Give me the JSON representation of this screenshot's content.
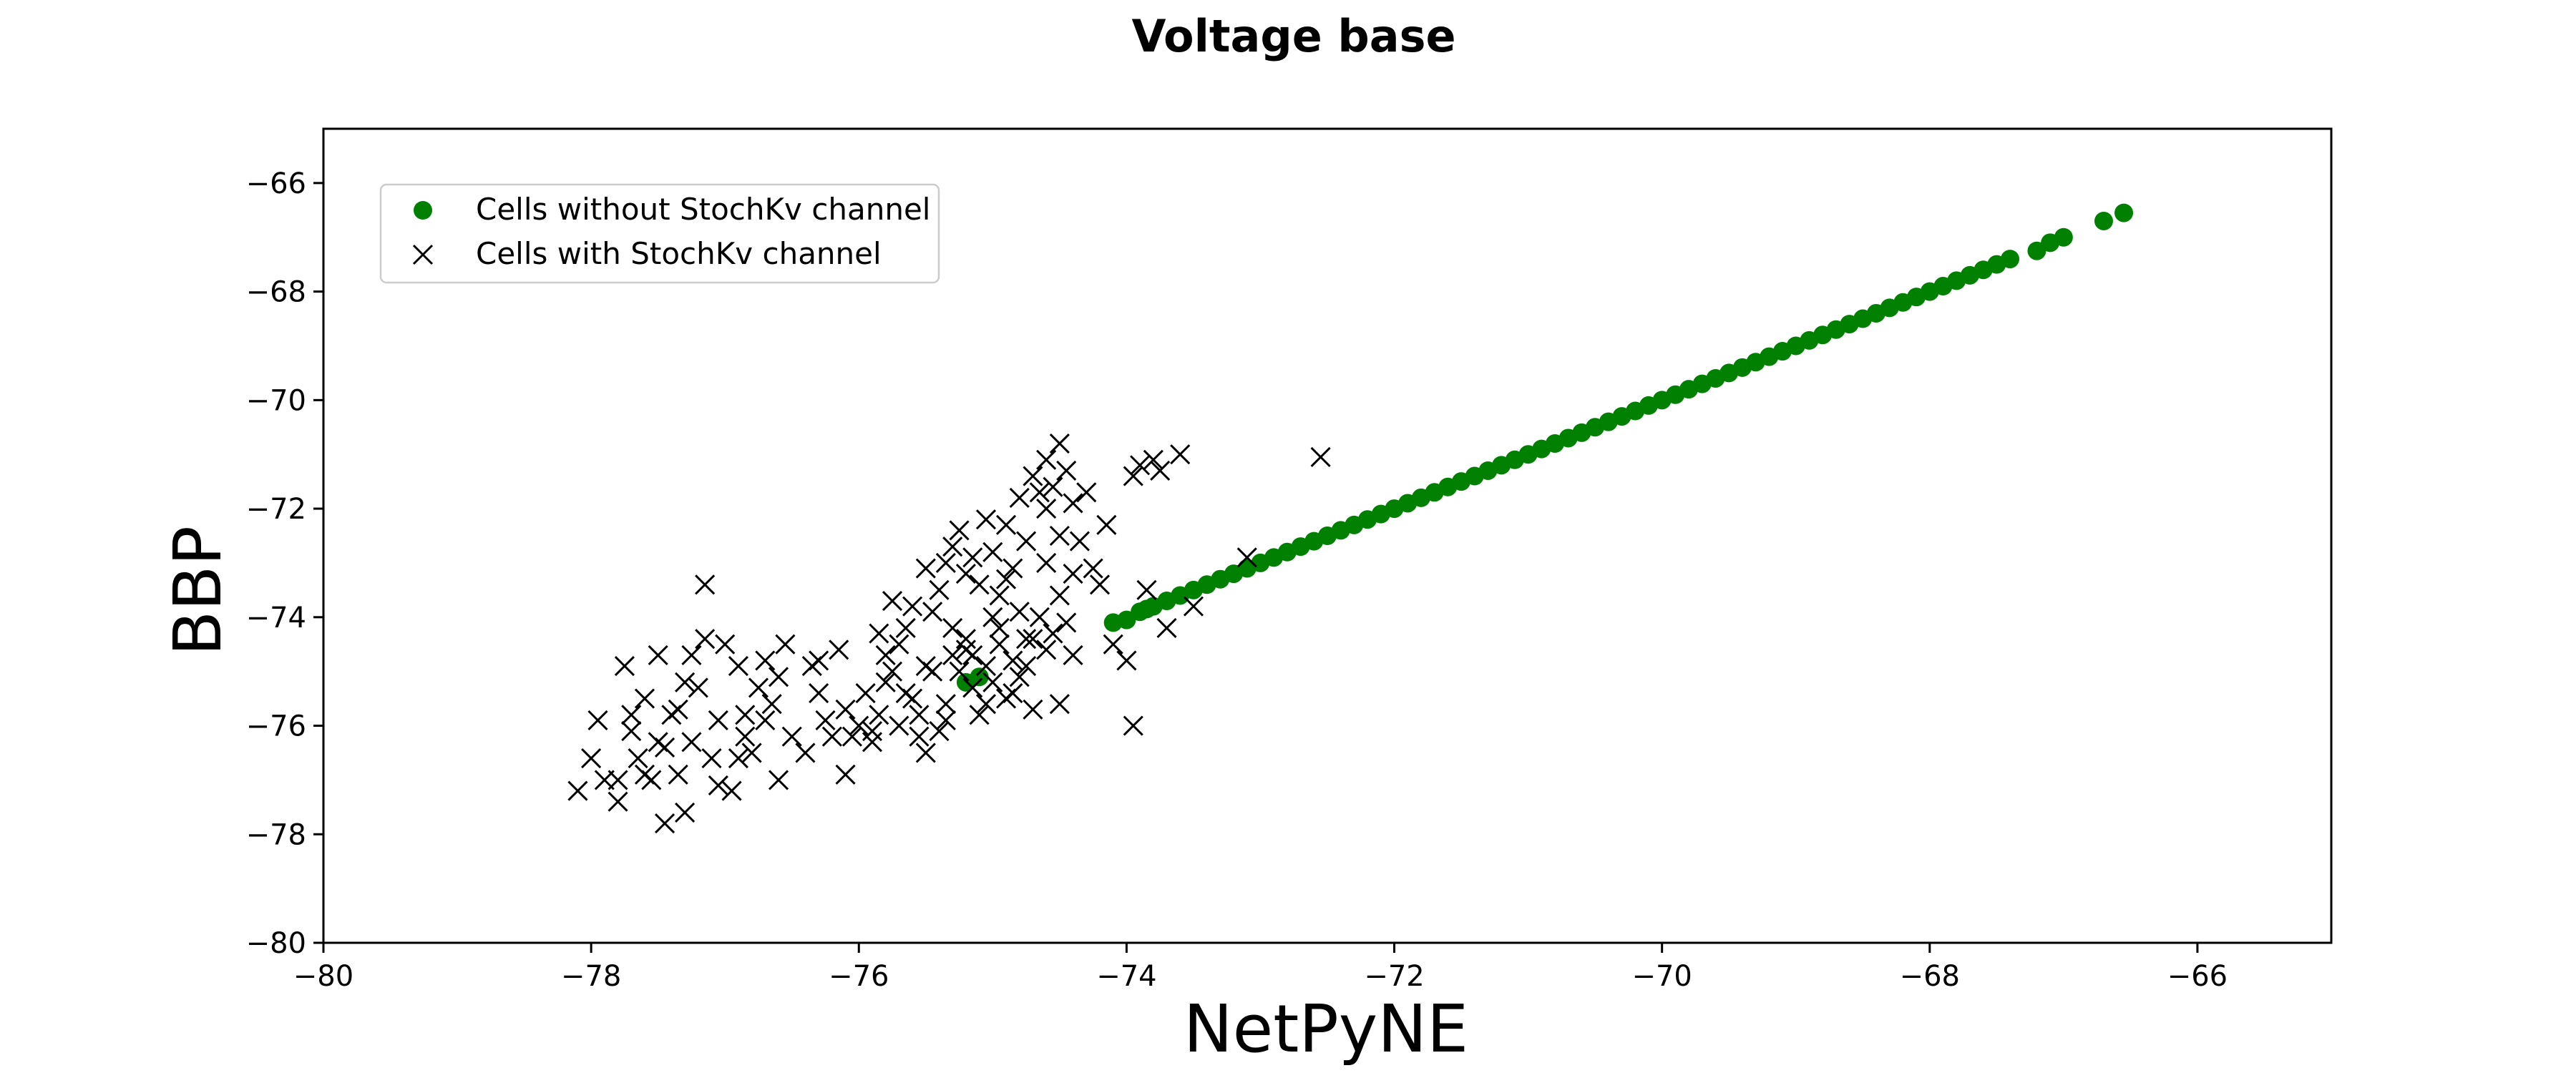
{
  "chart_data": {
    "type": "scatter",
    "title": "Voltage base",
    "xlabel": "NetPyNE",
    "ylabel": "BBP",
    "xlim": [
      -80,
      -65
    ],
    "ylim": [
      -80,
      -65
    ],
    "x_ticks": [
      -80,
      -78,
      -76,
      -74,
      -72,
      -70,
      -68,
      -66
    ],
    "y_ticks": [
      -80,
      -78,
      -76,
      -74,
      -72,
      -70,
      -68,
      -66
    ],
    "x_tick_labels": [
      "−80",
      "−78",
      "−76",
      "−74",
      "−72",
      "−70",
      "−68",
      "−66"
    ],
    "y_tick_labels": [
      "−80",
      "−78",
      "−76",
      "−74",
      "−72",
      "−70",
      "−68",
      "−66"
    ],
    "grid": false,
    "legend_position": "upper-left",
    "series": [
      {
        "name": "Cells without StochKv channel",
        "marker": "circle",
        "color": "#008000",
        "points": [
          [
            -74.1,
            -74.1
          ],
          [
            -74.0,
            -74.05
          ],
          [
            -73.9,
            -73.9
          ],
          [
            -73.85,
            -73.85
          ],
          [
            -73.8,
            -73.8
          ],
          [
            -73.7,
            -73.7
          ],
          [
            -73.6,
            -73.6
          ],
          [
            -73.5,
            -73.5
          ],
          [
            -73.4,
            -73.4
          ],
          [
            -73.3,
            -73.3
          ],
          [
            -73.2,
            -73.2
          ],
          [
            -73.1,
            -73.1
          ],
          [
            -73.0,
            -73.0
          ],
          [
            -72.9,
            -72.9
          ],
          [
            -72.8,
            -72.8
          ],
          [
            -72.7,
            -72.7
          ],
          [
            -72.6,
            -72.6
          ],
          [
            -72.5,
            -72.5
          ],
          [
            -72.4,
            -72.4
          ],
          [
            -72.3,
            -72.3
          ],
          [
            -72.2,
            -72.2
          ],
          [
            -72.1,
            -72.1
          ],
          [
            -72.0,
            -72.0
          ],
          [
            -71.9,
            -71.9
          ],
          [
            -71.8,
            -71.8
          ],
          [
            -71.7,
            -71.7
          ],
          [
            -71.6,
            -71.6
          ],
          [
            -71.5,
            -71.5
          ],
          [
            -71.4,
            -71.4
          ],
          [
            -71.3,
            -71.3
          ],
          [
            -71.2,
            -71.2
          ],
          [
            -71.1,
            -71.1
          ],
          [
            -71.0,
            -71.0
          ],
          [
            -70.9,
            -70.9
          ],
          [
            -70.8,
            -70.8
          ],
          [
            -70.7,
            -70.7
          ],
          [
            -70.6,
            -70.6
          ],
          [
            -70.5,
            -70.5
          ],
          [
            -70.4,
            -70.4
          ],
          [
            -70.3,
            -70.3
          ],
          [
            -70.2,
            -70.2
          ],
          [
            -70.1,
            -70.1
          ],
          [
            -70.0,
            -70.0
          ],
          [
            -69.9,
            -69.9
          ],
          [
            -69.8,
            -69.8
          ],
          [
            -69.7,
            -69.7
          ],
          [
            -69.6,
            -69.6
          ],
          [
            -69.5,
            -69.5
          ],
          [
            -69.4,
            -69.4
          ],
          [
            -69.3,
            -69.3
          ],
          [
            -69.2,
            -69.2
          ],
          [
            -69.1,
            -69.1
          ],
          [
            -69.0,
            -69.0
          ],
          [
            -68.9,
            -68.9
          ],
          [
            -68.8,
            -68.8
          ],
          [
            -68.7,
            -68.7
          ],
          [
            -68.6,
            -68.6
          ],
          [
            -68.5,
            -68.5
          ],
          [
            -68.4,
            -68.4
          ],
          [
            -68.3,
            -68.3
          ],
          [
            -68.2,
            -68.2
          ],
          [
            -68.1,
            -68.1
          ],
          [
            -68.0,
            -68.0
          ],
          [
            -67.9,
            -67.9
          ],
          [
            -67.8,
            -67.8
          ],
          [
            -67.7,
            -67.7
          ],
          [
            -67.6,
            -67.6
          ],
          [
            -67.5,
            -67.5
          ],
          [
            -67.4,
            -67.4
          ],
          [
            -67.2,
            -67.25
          ],
          [
            -67.1,
            -67.1
          ],
          [
            -67.0,
            -67.0
          ],
          [
            -66.7,
            -66.7
          ],
          [
            -66.55,
            -66.55
          ],
          [
            -75.2,
            -75.2
          ],
          [
            -75.1,
            -75.1
          ]
        ]
      },
      {
        "name": "Cells with StochKv channel",
        "marker": "x",
        "color": "#000000",
        "points": [
          [
            -78.1,
            -77.2
          ],
          [
            -78.0,
            -76.6
          ],
          [
            -77.95,
            -75.9
          ],
          [
            -77.9,
            -77.0
          ],
          [
            -77.8,
            -77.4
          ],
          [
            -77.75,
            -74.9
          ],
          [
            -77.7,
            -76.1
          ],
          [
            -77.6,
            -75.5
          ],
          [
            -77.55,
            -77.0
          ],
          [
            -77.5,
            -76.3
          ],
          [
            -77.5,
            -74.7
          ],
          [
            -77.45,
            -77.8
          ],
          [
            -77.4,
            -75.8
          ],
          [
            -77.35,
            -76.9
          ],
          [
            -77.3,
            -75.2
          ],
          [
            -77.3,
            -77.6
          ],
          [
            -77.25,
            -76.3
          ],
          [
            -77.2,
            -75.3
          ],
          [
            -77.15,
            -74.4
          ],
          [
            -77.1,
            -76.6
          ],
          [
            -77.05,
            -77.1
          ],
          [
            -77.0,
            -74.5
          ],
          [
            -76.95,
            -77.2
          ],
          [
            -76.9,
            -76.6
          ],
          [
            -76.85,
            -75.8
          ],
          [
            -76.8,
            -76.5
          ],
          [
            -76.75,
            -75.3
          ],
          [
            -76.7,
            -74.8
          ],
          [
            -76.65,
            -75.6
          ],
          [
            -76.6,
            -77.0
          ],
          [
            -77.8,
            -77.0
          ],
          [
            -77.6,
            -76.9
          ],
          [
            -77.45,
            -76.4
          ],
          [
            -77.7,
            -75.8
          ],
          [
            -77.15,
            -73.4
          ],
          [
            -76.9,
            -74.9
          ],
          [
            -76.55,
            -74.5
          ],
          [
            -76.3,
            -75.4
          ],
          [
            -76.2,
            -76.2
          ],
          [
            -76.1,
            -76.9
          ],
          [
            -76.0,
            -76.0
          ],
          [
            -75.95,
            -75.4
          ],
          [
            -75.9,
            -76.3
          ],
          [
            -75.85,
            -75.8
          ],
          [
            -75.8,
            -75.2
          ],
          [
            -75.7,
            -76.0
          ],
          [
            -75.6,
            -75.5
          ],
          [
            -75.5,
            -76.5
          ],
          [
            -75.45,
            -75.0
          ],
          [
            -75.4,
            -76.1
          ],
          [
            -75.35,
            -75.6
          ],
          [
            -75.3,
            -74.7
          ],
          [
            -75.25,
            -75.0
          ],
          [
            -75.2,
            -74.4
          ],
          [
            -75.15,
            -75.3
          ],
          [
            -75.1,
            -75.8
          ],
          [
            -75.05,
            -74.9
          ],
          [
            -75.0,
            -75.2
          ],
          [
            -74.95,
            -74.5
          ],
          [
            -74.9,
            -75.5
          ],
          [
            -74.85,
            -74.8
          ],
          [
            -74.8,
            -75.1
          ],
          [
            -74.75,
            -74.4
          ],
          [
            -74.7,
            -75.7
          ],
          [
            -74.65,
            -74.0
          ],
          [
            -74.6,
            -74.6
          ],
          [
            -74.55,
            -74.3
          ],
          [
            -74.5,
            -75.6
          ],
          [
            -74.45,
            -74.1
          ],
          [
            -74.4,
            -74.7
          ],
          [
            -76.4,
            -76.5
          ],
          [
            -76.35,
            -74.9
          ],
          [
            -76.25,
            -75.9
          ],
          [
            -76.15,
            -74.6
          ],
          [
            -76.05,
            -76.2
          ],
          [
            -75.75,
            -75.0
          ],
          [
            -75.65,
            -74.2
          ],
          [
            -75.55,
            -76.2
          ],
          [
            -75.5,
            -74.9
          ],
          [
            -75.45,
            -73.9
          ],
          [
            -75.4,
            -73.5
          ],
          [
            -75.35,
            -73.0
          ],
          [
            -75.3,
            -72.7
          ],
          [
            -75.25,
            -72.4
          ],
          [
            -75.2,
            -73.2
          ],
          [
            -75.15,
            -72.9
          ],
          [
            -75.1,
            -73.4
          ],
          [
            -75.05,
            -72.2
          ],
          [
            -75.0,
            -72.8
          ],
          [
            -74.95,
            -73.6
          ],
          [
            -74.9,
            -72.3
          ],
          [
            -74.85,
            -73.1
          ],
          [
            -74.8,
            -71.8
          ],
          [
            -74.75,
            -72.6
          ],
          [
            -74.7,
            -71.4
          ],
          [
            -74.65,
            -71.7
          ],
          [
            -74.6,
            -71.1
          ],
          [
            -74.55,
            -71.6
          ],
          [
            -74.5,
            -70.8
          ],
          [
            -74.45,
            -71.3
          ],
          [
            -74.4,
            -71.9
          ],
          [
            -74.35,
            -72.6
          ],
          [
            -74.3,
            -71.7
          ],
          [
            -74.25,
            -73.1
          ],
          [
            -74.2,
            -73.4
          ],
          [
            -74.15,
            -72.3
          ],
          [
            -74.1,
            -74.5
          ],
          [
            -74.0,
            -74.8
          ],
          [
            -73.95,
            -71.4
          ],
          [
            -73.9,
            -71.2
          ],
          [
            -73.85,
            -73.5
          ],
          [
            -73.8,
            -71.1
          ],
          [
            -73.75,
            -71.3
          ],
          [
            -73.7,
            -74.2
          ],
          [
            -73.6,
            -71.0
          ],
          [
            -73.5,
            -73.8
          ],
          [
            -73.95,
            -76.0
          ],
          [
            -72.55,
            -71.05
          ],
          [
            -73.1,
            -72.9
          ],
          [
            -75.6,
            -73.8
          ],
          [
            -75.85,
            -74.3
          ],
          [
            -75.75,
            -73.7
          ],
          [
            -75.7,
            -74.5
          ],
          [
            -75.5,
            -73.1
          ],
          [
            -75.3,
            -74.2
          ],
          [
            -75.2,
            -74.6
          ],
          [
            -75.0,
            -74.0
          ],
          [
            -74.9,
            -73.3
          ],
          [
            -74.8,
            -73.9
          ],
          [
            -74.7,
            -74.4
          ],
          [
            -74.6,
            -73.0
          ],
          [
            -74.5,
            -73.6
          ],
          [
            -74.4,
            -73.2
          ],
          [
            -74.6,
            -72.0
          ],
          [
            -74.5,
            -72.5
          ],
          [
            -76.6,
            -75.1
          ],
          [
            -76.7,
            -75.9
          ],
          [
            -76.5,
            -76.2
          ],
          [
            -76.3,
            -74.8
          ],
          [
            -76.1,
            -75.7
          ],
          [
            -75.9,
            -76.1
          ],
          [
            -75.8,
            -74.7
          ],
          [
            -75.65,
            -75.4
          ],
          [
            -75.55,
            -75.8
          ],
          [
            -75.35,
            -75.9
          ],
          [
            -75.15,
            -74.7
          ],
          [
            -75.05,
            -75.6
          ],
          [
            -74.95,
            -74.2
          ],
          [
            -74.85,
            -75.4
          ],
          [
            -74.75,
            -74.9
          ],
          [
            -77.65,
            -76.6
          ],
          [
            -77.35,
            -75.7
          ],
          [
            -77.05,
            -75.9
          ],
          [
            -76.85,
            -76.2
          ],
          [
            -77.25,
            -74.7
          ]
        ]
      }
    ]
  }
}
